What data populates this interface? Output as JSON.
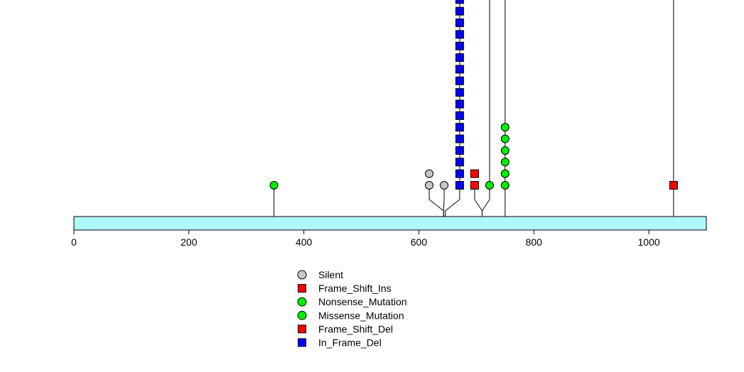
{
  "chart_data": {
    "type": "scatter",
    "subtype": "lollipop-mutation-plot",
    "title": "",
    "xlabel": "",
    "ylabel": "",
    "protein_length": 1100,
    "xlim": [
      0,
      1100
    ],
    "x_ticks": [
      0,
      200,
      400,
      600,
      800,
      1000
    ],
    "x_tick_labels": [
      "0",
      "200",
      "400",
      "600",
      "800",
      "1000"
    ],
    "grid": false,
    "legend_position": "bottom-center",
    "colors": {
      "protein_bar": "#aff8f8",
      "Silent": "#c8c8c8",
      "Frame_Shift_Ins": "#ff0000",
      "Nonsense_Mutation": "#00ee00",
      "Missense_Mutation": "#00ee00",
      "Frame_Shift_Del": "#ff0000",
      "In_Frame_Del": "#0000ff"
    },
    "legend": [
      {
        "label": "Silent",
        "shape": "circle",
        "color": "#c8c8c8"
      },
      {
        "label": "Frame_Shift_Ins",
        "shape": "square",
        "color": "#ff0000"
      },
      {
        "label": "Nonsense_Mutation",
        "shape": "circle",
        "color": "#00ee00"
      },
      {
        "label": "Missense_Mutation",
        "shape": "circle",
        "color": "#00ee00"
      },
      {
        "label": "Frame_Shift_Del",
        "shape": "square",
        "color": "#ff0000"
      },
      {
        "label": "In_Frame_Del",
        "shape": "square",
        "color": "#0000ff"
      }
    ],
    "stems": [
      {
        "position": 348,
        "stack_position": 348,
        "marks": [
          {
            "type": "Missense_Mutation",
            "count": 1
          }
        ]
      },
      {
        "position": 643,
        "stack_position": 618,
        "marks": [
          {
            "type": "Silent",
            "count": 2
          }
        ]
      },
      {
        "position": 643,
        "stack_position": 644,
        "marks": [
          {
            "type": "Silent",
            "count": 1
          }
        ]
      },
      {
        "position": 646,
        "stack_position": 671,
        "extends_above_view": true,
        "marks": [
          {
            "type": "In_Frame_Del",
            "count": 17
          }
        ]
      },
      {
        "position": 710,
        "stack_position": 697,
        "marks": [
          {
            "type": "Frame_Shift_Ins",
            "count": 2
          }
        ]
      },
      {
        "position": 710,
        "stack_position": 723,
        "extends_above_view": true,
        "marks": [
          {
            "type": "Missense_Mutation",
            "count": 1
          }
        ]
      },
      {
        "position": 750,
        "stack_position": 750,
        "extends_above_view": true,
        "marks": [
          {
            "type": "Missense_Mutation",
            "count": 6
          }
        ]
      },
      {
        "position": 1043,
        "stack_position": 1043,
        "extends_above_view": true,
        "marks": [
          {
            "type": "Frame_Shift_Del",
            "count": 1
          }
        ]
      }
    ]
  }
}
